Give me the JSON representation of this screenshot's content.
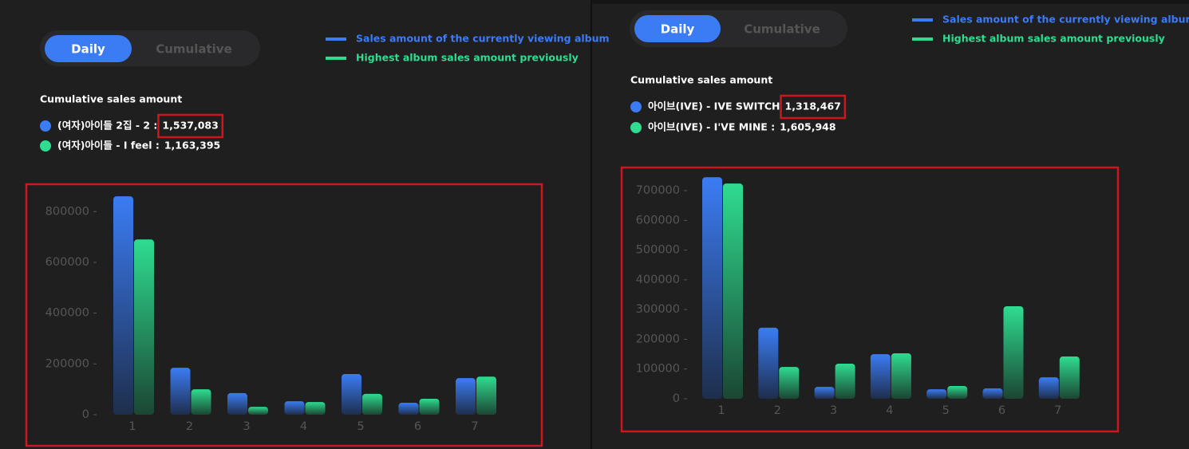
{
  "chart_data": [
    {
      "type": "bar",
      "buttons": [
        "Daily",
        "Cumulative"
      ],
      "subtitle": "Cumulative sales amount",
      "summary": [
        {
          "name": "(여자)아이들 2집 - 2 :",
          "amount": "1,537,083"
        },
        {
          "name": "(여자)아이들 - I feel :",
          "amount": "1,163,395"
        }
      ],
      "categories": [
        "1",
        "2",
        "3",
        "4",
        "5",
        "6",
        "7"
      ],
      "series": [
        {
          "name": "Sales amount of the currently viewing album",
          "color": "#3b7cf4",
          "values": [
            860000,
            185000,
            85000,
            53000,
            160000,
            47000,
            144000
          ]
        },
        {
          "name": "Highest album sales amount previously",
          "color": "#2fdc90",
          "values": [
            690000,
            100000,
            31000,
            50000,
            82000,
            63000,
            150000
          ]
        }
      ],
      "ylim": [
        0,
        870000
      ],
      "yticks": [
        0,
        200000,
        400000,
        600000,
        800000
      ],
      "grid": false
    },
    {
      "type": "bar",
      "buttons": [
        "Daily",
        "Cumulative"
      ],
      "subtitle": "Cumulative sales amount",
      "summary": [
        {
          "name": "아이브(IVE) - IVE SWITCH",
          "amount": "1,318,467"
        },
        {
          "name": "아이브(IVE) - I'VE MINE :",
          "amount": "1,605,948"
        }
      ],
      "categories": [
        "1",
        "2",
        "3",
        "4",
        "5",
        "6",
        "7"
      ],
      "series": [
        {
          "name": "Sales amount of the currently viewing album",
          "color": "#3b7cf4",
          "values": [
            745000,
            239000,
            40000,
            150000,
            32000,
            35000,
            72000
          ]
        },
        {
          "name": "Highest album sales amount previously",
          "color": "#2fdc90",
          "values": [
            724000,
            107000,
            118000,
            153000,
            43000,
            311000,
            142000
          ]
        }
      ],
      "ylim": [
        0,
        750000
      ],
      "yticks": [
        0,
        100000,
        200000,
        300000,
        400000,
        500000,
        600000,
        700000
      ],
      "grid": false
    }
  ]
}
